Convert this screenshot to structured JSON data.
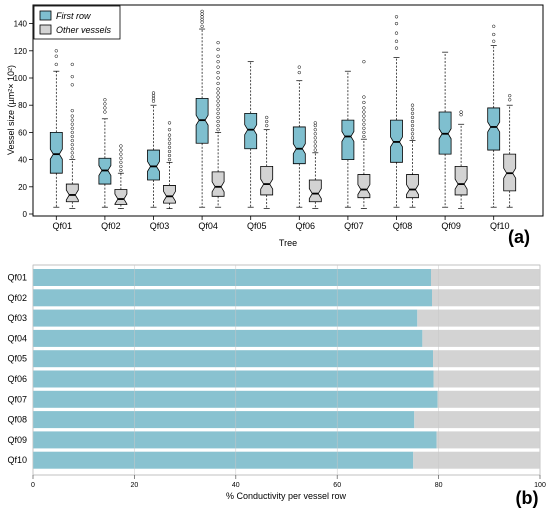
{
  "chart_data": [
    {
      "type": "boxplot",
      "panel_label": "(a)",
      "xlabel": "Tree",
      "ylabel": "Vessel size (µm²× 10²)",
      "ylim": [
        0,
        150
      ],
      "yticks": [
        0,
        20,
        40,
        60,
        80,
        100,
        120,
        140
      ],
      "categories": [
        "Qf01",
        "Qf02",
        "Qf03",
        "Qf04",
        "Qf05",
        "Qf06",
        "Qf07",
        "Qf08",
        "Qf09",
        "Qf10"
      ],
      "legend_position": "top-left",
      "series": [
        {
          "name": "First row",
          "color": "#7fbfcf",
          "boxes": [
            {
              "min": 5,
              "q1": 30,
              "median": 44,
              "q3": 60,
              "max": 105,
              "outliers": [
                110,
                116,
                120
              ]
            },
            {
              "min": 5,
              "q1": 22,
              "median": 32,
              "q3": 41,
              "max": 70,
              "outliers": [
                75,
                78,
                81,
                84
              ]
            },
            {
              "min": 5,
              "q1": 25,
              "median": 35,
              "q3": 47,
              "max": 80,
              "outliers": [
                83,
                85,
                87,
                89
              ]
            },
            {
              "min": 5,
              "q1": 52,
              "median": 69,
              "q3": 85,
              "max": 136,
              "outliers": [
                138,
                141,
                143,
                145,
                147,
                149
              ]
            },
            {
              "min": 5,
              "q1": 48,
              "median": 62,
              "q3": 74,
              "max": 112,
              "outliers": []
            },
            {
              "min": 5,
              "q1": 37,
              "median": 48,
              "q3": 64,
              "max": 98,
              "outliers": [
                104,
                108
              ]
            },
            {
              "min": 5,
              "q1": 40,
              "median": 57,
              "q3": 69,
              "max": 105,
              "outliers": []
            },
            {
              "min": 5,
              "q1": 38,
              "median": 53,
              "q3": 69,
              "max": 115,
              "outliers": [
                122,
                127,
                133,
                140,
                145
              ]
            },
            {
              "min": 5,
              "q1": 44,
              "median": 59,
              "q3": 75,
              "max": 119,
              "outliers": []
            },
            {
              "min": 5,
              "q1": 47,
              "median": 64,
              "q3": 78,
              "max": 124,
              "outliers": [
                127,
                132,
                138
              ]
            }
          ]
        },
        {
          "name": "Other vessels",
          "color": "#d3d3d3",
          "boxes": [
            {
              "min": 4,
              "q1": 9,
              "median": 14,
              "q3": 22,
              "max": 40,
              "outliers": [
                42,
                45,
                48,
                51,
                54,
                57,
                60,
                63,
                66,
                69,
                72,
                76,
                95,
                101,
                110
              ]
            },
            {
              "min": 4,
              "q1": 7,
              "median": 11,
              "q3": 18,
              "max": 30,
              "outliers": [
                32,
                35,
                38,
                41,
                44,
                47,
                50
              ]
            },
            {
              "min": 4,
              "q1": 8,
              "median": 13,
              "q3": 21,
              "max": 38,
              "outliers": [
                40,
                43,
                46,
                49,
                52,
                55,
                58,
                62,
                67
              ]
            },
            {
              "min": 5,
              "q1": 13,
              "median": 20,
              "q3": 31,
              "max": 60,
              "outliers": [
                62,
                65,
                68,
                71,
                74,
                77,
                80,
                83,
                86,
                89,
                92,
                96,
                100,
                104,
                108,
                112,
                116,
                121,
                126
              ]
            },
            {
              "min": 4,
              "q1": 14,
              "median": 22,
              "q3": 35,
              "max": 62,
              "outliers": [
                65,
                68,
                71
              ]
            },
            {
              "min": 4,
              "q1": 9,
              "median": 15,
              "q3": 25,
              "max": 45,
              "outliers": [
                47,
                50,
                53,
                56,
                59,
                62,
                65,
                67
              ]
            },
            {
              "min": 4,
              "q1": 12,
              "median": 18,
              "q3": 29,
              "max": 55,
              "outliers": [
                57,
                60,
                63,
                66,
                69,
                72,
                75,
                78,
                82,
                86,
                112
              ]
            },
            {
              "min": 5,
              "q1": 12,
              "median": 18,
              "q3": 29,
              "max": 54,
              "outliers": [
                56,
                59,
                62,
                65,
                68,
                71,
                74,
                77,
                80
              ]
            },
            {
              "min": 4,
              "q1": 14,
              "median": 22,
              "q3": 35,
              "max": 66,
              "outliers": [
                73,
                75
              ]
            },
            {
              "min": 5,
              "q1": 17,
              "median": 30,
              "q3": 44,
              "max": 80,
              "outliers": [
                84,
                87
              ]
            }
          ]
        }
      ]
    },
    {
      "type": "bar",
      "orientation": "horizontal",
      "stacked": true,
      "panel_label": "(b)",
      "xlabel": "% Conductivity per vessel row",
      "xlim": [
        0,
        100
      ],
      "xticks": [
        0,
        20,
        40,
        60,
        80,
        100
      ],
      "categories": [
        "Qf01",
        "Qf02",
        "Qf03",
        "Qf04",
        "Qf05",
        "Qf06",
        "Qf07",
        "Qf08",
        "Qf09",
        "Qf10"
      ],
      "series": [
        {
          "color": "#89c2d0",
          "values": [
            78.5,
            78.7,
            75.8,
            76.8,
            78.9,
            79.0,
            79.8,
            75.2,
            79.6,
            75.0
          ]
        },
        {
          "color": "#d3d3d3",
          "values": [
            21.5,
            21.3,
            24.2,
            23.2,
            21.1,
            21.0,
            20.2,
            24.8,
            20.4,
            25.0
          ]
        }
      ]
    }
  ]
}
